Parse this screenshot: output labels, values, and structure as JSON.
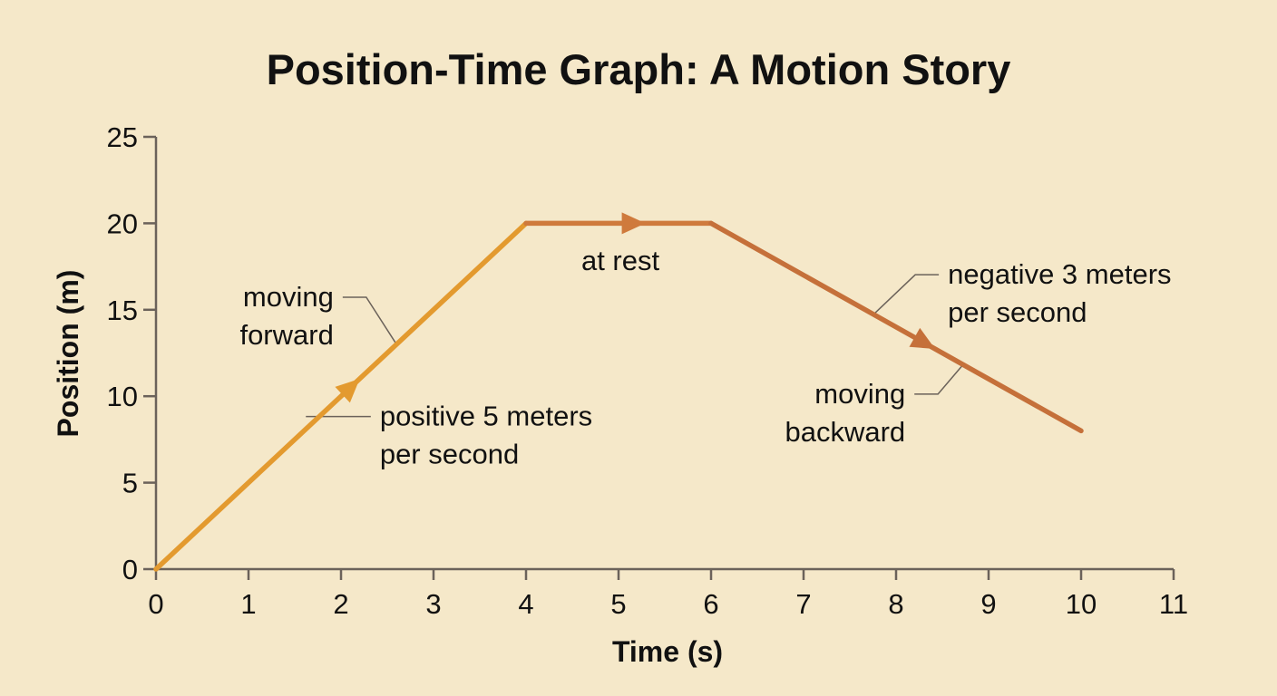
{
  "colors": {
    "background": "#f5e8c9",
    "axis": "#6b625a",
    "segment_forward": "#e39a2f",
    "segment_rest": "#cf7a3c",
    "segment_backward": "#c5703a",
    "leader": "#6b625a",
    "text": "#111111"
  },
  "chart_data": {
    "type": "line",
    "title": "Position-Time Graph: A Motion Story",
    "xlabel": "Time (s)",
    "ylabel": "Position (m)",
    "xlim": [
      0,
      11
    ],
    "ylim": [
      0,
      25
    ],
    "x_ticks": [
      0,
      1,
      2,
      3,
      4,
      5,
      6,
      7,
      8,
      9,
      10,
      11
    ],
    "y_ticks": [
      0,
      5,
      10,
      15,
      20,
      25
    ],
    "grid": false,
    "legend": "none",
    "series": [
      {
        "x": [
          0,
          4,
          6,
          10
        ],
        "y": [
          0,
          20,
          20,
          8
        ]
      }
    ],
    "segments": [
      {
        "id": "forward",
        "from": [
          0,
          0
        ],
        "to": [
          4,
          20
        ],
        "color": "#e39a2f",
        "arrow_at_x": 2.1
      },
      {
        "id": "rest",
        "from": [
          4,
          20
        ],
        "to": [
          6,
          20
        ],
        "color": "#cf7a3c",
        "arrow_at_x": 5.15
      },
      {
        "id": "backward",
        "from": [
          6,
          20
        ],
        "to": [
          10,
          8
        ],
        "color": "#c5703a",
        "arrow_at_x": 8.3
      }
    ],
    "annotations": [
      {
        "id": "moving-forward",
        "lines": [
          "moving",
          "forward"
        ],
        "anchor": "end",
        "text_at": [
          1.92,
          15.2
        ],
        "point": [
          2.6,
          13.0
        ],
        "leader": "elbow"
      },
      {
        "id": "positive-speed",
        "lines": [
          "positive 5 meters",
          "per second"
        ],
        "anchor": "start",
        "text_at": [
          2.42,
          8.3
        ],
        "point": [
          1.62,
          8.1
        ],
        "leader": "straight"
      },
      {
        "id": "at-rest",
        "lines": [
          "at rest"
        ],
        "anchor": "middle",
        "text_at": [
          5.02,
          17.3
        ],
        "point": null,
        "leader": "none"
      },
      {
        "id": "negative-speed",
        "lines": [
          "negative 3 meters",
          "per second"
        ],
        "anchor": "start",
        "text_at": [
          8.56,
          16.5
        ],
        "point": [
          7.75,
          14.7
        ],
        "leader": "elbow"
      },
      {
        "id": "moving-backward",
        "lines": [
          "moving",
          "backward"
        ],
        "anchor": "end",
        "text_at": [
          8.1,
          9.6
        ],
        "point": [
          8.72,
          11.8
        ],
        "leader": "elbow"
      }
    ]
  }
}
